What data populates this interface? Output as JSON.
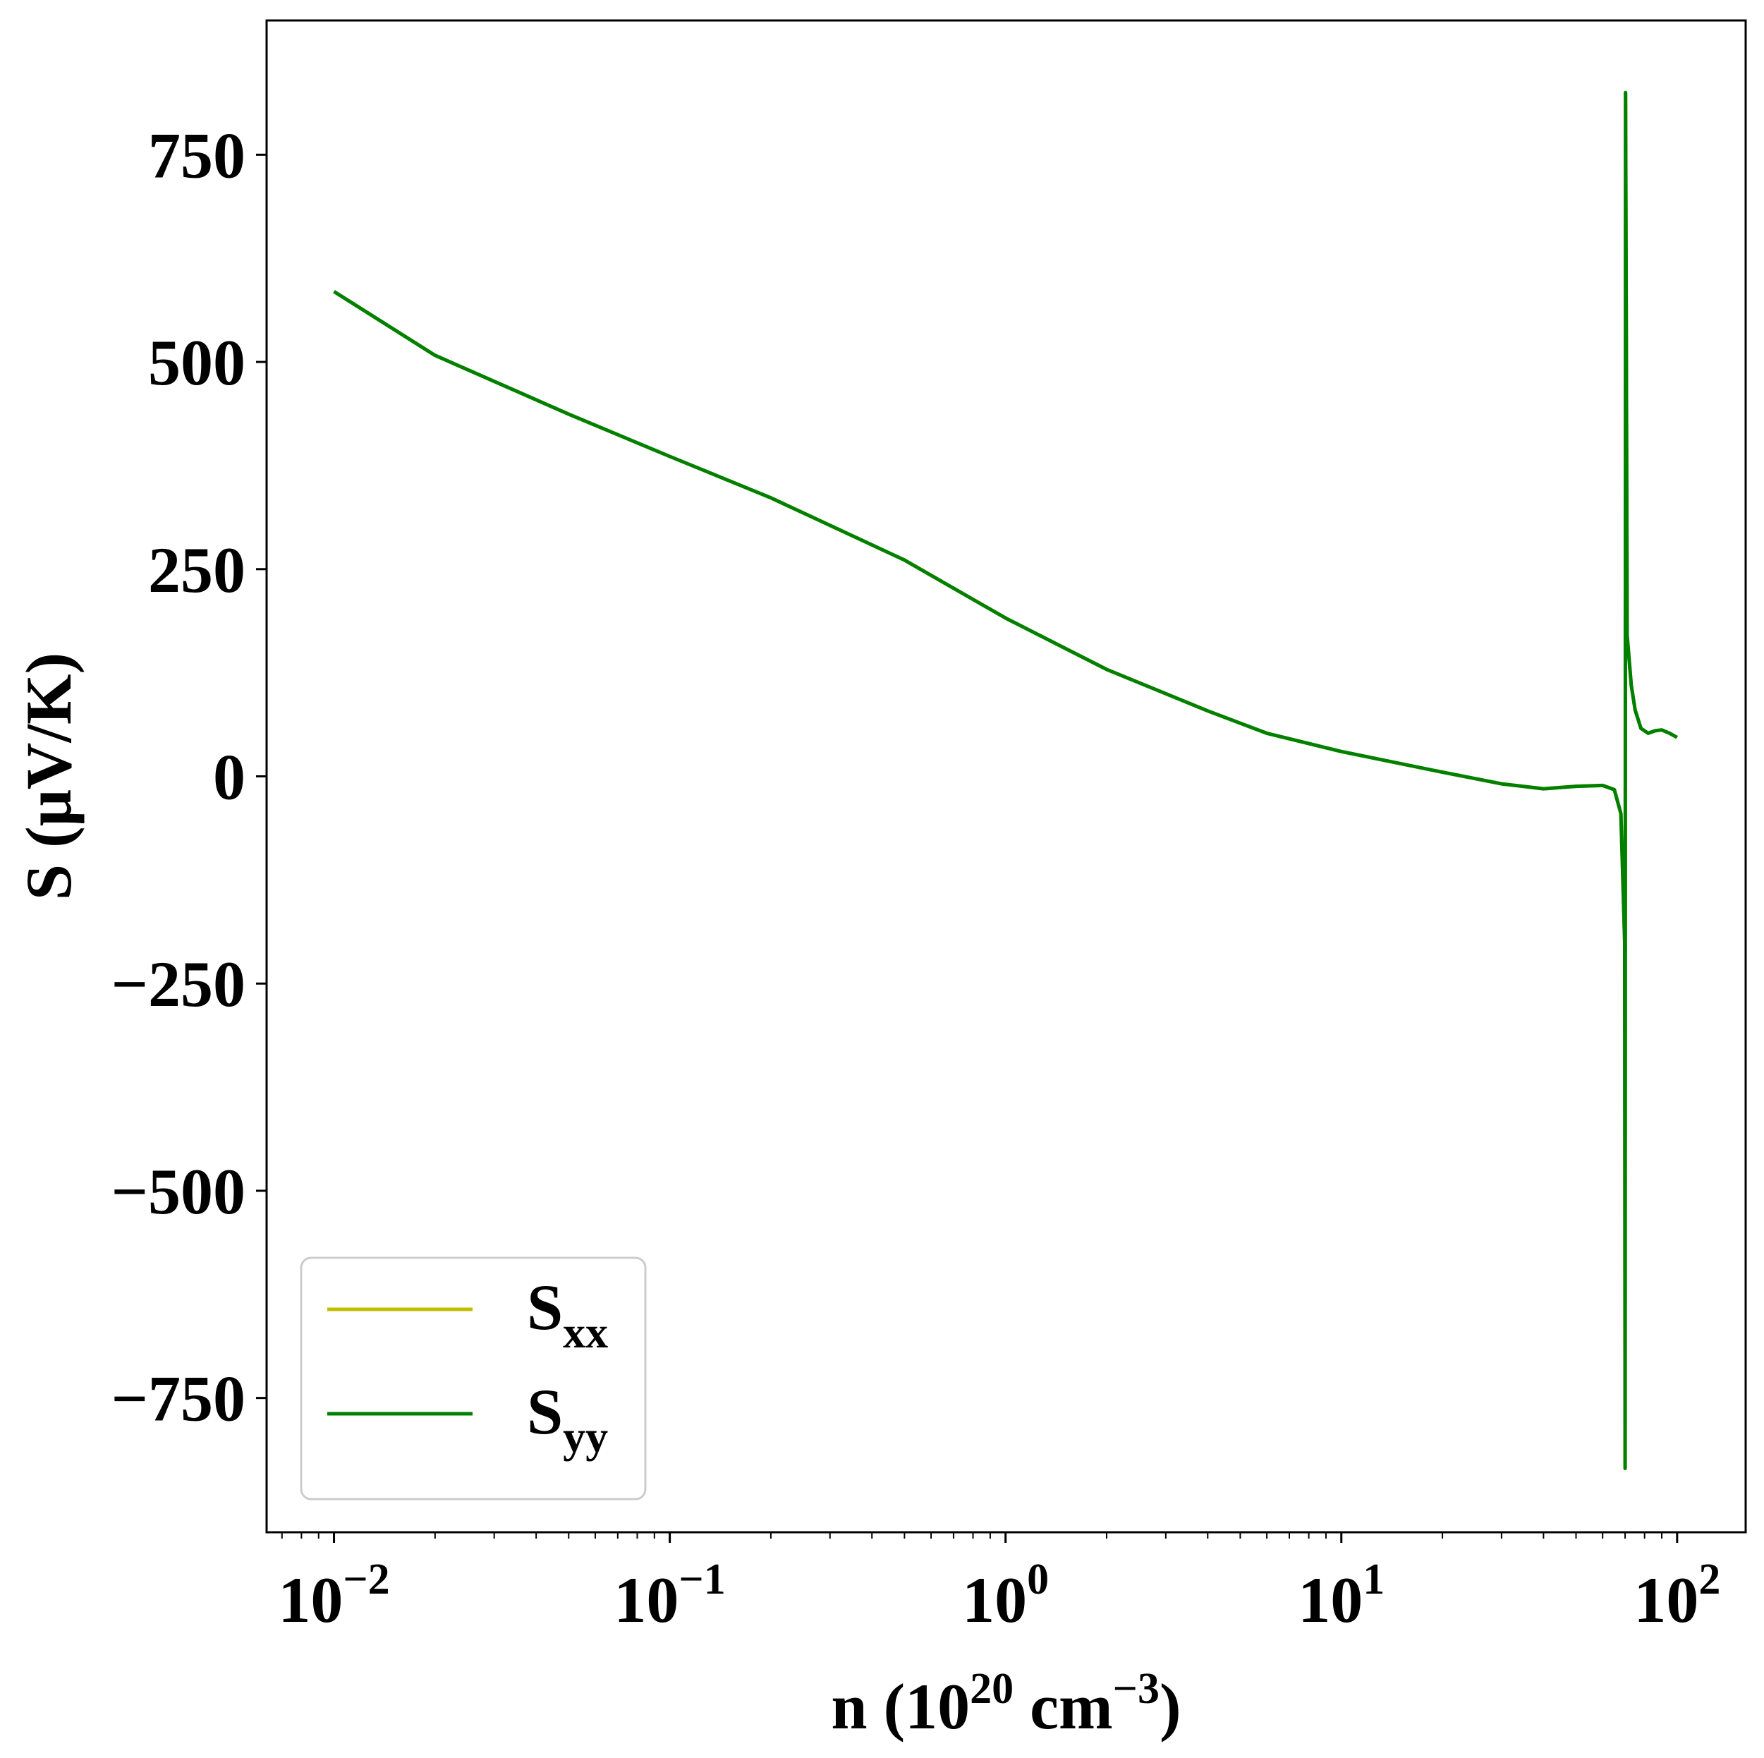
{
  "chart_data": {
    "type": "line",
    "xscale": "log",
    "xlim": [
      0.0063,
      160
    ],
    "ylim": [
      -912,
      912
    ],
    "xlabel": {
      "prefix": "n (10",
      "exp1": "20",
      "mid": " cm",
      "exp2": "−3",
      "suffix": ")"
    },
    "ylabel": "S (μV/K)",
    "yticks": [
      {
        "value": -750,
        "label": "−750"
      },
      {
        "value": -500,
        "label": "−500"
      },
      {
        "value": -250,
        "label": "−250"
      },
      {
        "value": 0,
        "label": "0"
      },
      {
        "value": 250,
        "label": "250"
      },
      {
        "value": 500,
        "label": "500"
      },
      {
        "value": 750,
        "label": "750"
      }
    ],
    "xticks": [
      {
        "value": 0.01,
        "base": "10",
        "exp": "−2"
      },
      {
        "value": 0.1,
        "base": "10",
        "exp": "−1"
      },
      {
        "value": 1,
        "base": "10",
        "exp": "0"
      },
      {
        "value": 10,
        "base": "10",
        "exp": "1"
      },
      {
        "value": 100,
        "base": "10",
        "exp": "2"
      }
    ],
    "grid": false,
    "legend_position": "lower-left",
    "series": [
      {
        "name": "Sxx",
        "name_main": "S",
        "name_sub": "xx",
        "color": "#bfbf00",
        "x": [
          0.01,
          0.02,
          0.05,
          0.1,
          0.2,
          0.5,
          1,
          2,
          4,
          6,
          10,
          20,
          30,
          40,
          50,
          60,
          65,
          68,
          69.8,
          70.0,
          70.2,
          71,
          73,
          75,
          78,
          82,
          86,
          90,
          95,
          100
        ],
        "y": [
          585,
          508,
          437,
          386,
          336,
          261,
          191,
          129,
          79,
          52,
          30,
          5,
          -9,
          -15,
          -12,
          -11,
          -16,
          -45,
          -200,
          -835,
          825,
          170,
          110,
          80,
          58,
          52,
          55,
          56,
          52,
          47
        ]
      },
      {
        "name": "Syy",
        "name_main": "S",
        "name_sub": "yy",
        "color": "#008000",
        "x": [
          0.01,
          0.02,
          0.05,
          0.1,
          0.2,
          0.5,
          1,
          2,
          4,
          6,
          10,
          20,
          30,
          40,
          50,
          60,
          65,
          68,
          69.8,
          70.0,
          70.2,
          71,
          73,
          75,
          78,
          82,
          86,
          90,
          95,
          100
        ],
        "y": [
          585,
          508,
          437,
          386,
          336,
          261,
          191,
          129,
          79,
          52,
          30,
          5,
          -9,
          -15,
          -12,
          -11,
          -16,
          -45,
          -200,
          -835,
          825,
          170,
          110,
          80,
          58,
          52,
          55,
          56,
          52,
          47
        ]
      }
    ]
  }
}
